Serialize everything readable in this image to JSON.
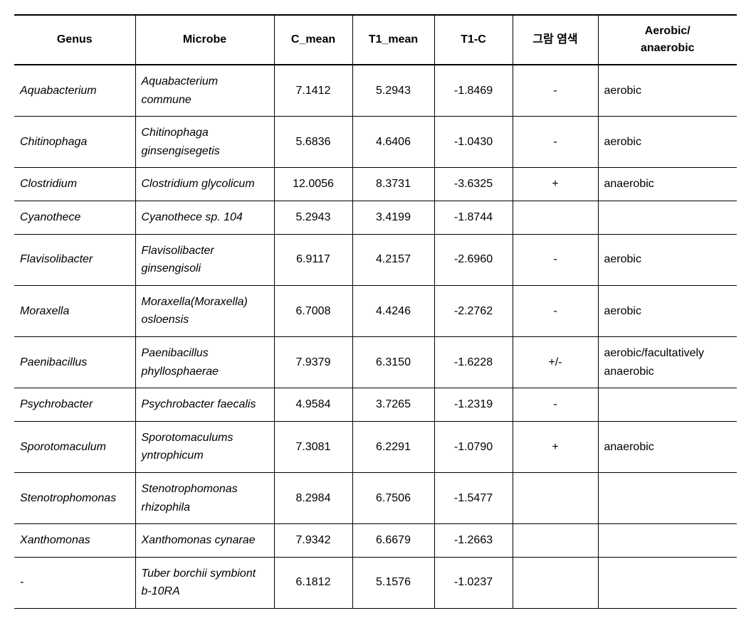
{
  "table": {
    "columns": [
      {
        "key": "genus",
        "label": "Genus",
        "class": "col-genus"
      },
      {
        "key": "microbe",
        "label": "Microbe",
        "class": "col-microbe"
      },
      {
        "key": "cmean",
        "label": "C_mean",
        "class": "col-cmean"
      },
      {
        "key": "t1mean",
        "label": "T1_mean",
        "class": "col-t1mean"
      },
      {
        "key": "t1c",
        "label": "T1-C",
        "class": "col-t1c"
      },
      {
        "key": "gram",
        "label": "그람 염색",
        "class": "col-gram"
      },
      {
        "key": "aerobic",
        "label": "Aerobic/\nanaerobic",
        "class": "col-aerobic"
      }
    ],
    "rows": [
      {
        "genus": "Aquabacterium",
        "microbe": "Aquabacterium commune",
        "cmean": "7.1412",
        "t1mean": "5.2943",
        "t1c": "-1.8469",
        "gram": "-",
        "aerobic": "aerobic"
      },
      {
        "genus": "Chitinophaga",
        "microbe": "Chitinophaga ginsengisegetis",
        "cmean": "5.6836",
        "t1mean": "4.6406",
        "t1c": "-1.0430",
        "gram": "-",
        "aerobic": "aerobic"
      },
      {
        "genus": "Clostridium",
        "microbe": "Clostridium glycolicum",
        "cmean": "12.0056",
        "t1mean": "8.3731",
        "t1c": "-3.6325",
        "gram": "+",
        "aerobic": "anaerobic"
      },
      {
        "genus": "Cyanothece",
        "microbe": "Cyanothece sp. 104",
        "cmean": "5.2943",
        "t1mean": "3.4199",
        "t1c": "-1.8744",
        "gram": "",
        "aerobic": ""
      },
      {
        "genus": "Flavisolibacter",
        "microbe": "Flavisolibacter ginsengisoli",
        "cmean": "6.9117",
        "t1mean": "4.2157",
        "t1c": "-2.6960",
        "gram": "-",
        "aerobic": "aerobic"
      },
      {
        "genus": "Moraxella",
        "microbe": "Moraxella(Moraxella) osloensis",
        "cmean": "6.7008",
        "t1mean": "4.4246",
        "t1c": "-2.2762",
        "gram": "-",
        "aerobic": "aerobic"
      },
      {
        "genus": "Paenibacillus",
        "microbe": "Paenibacillus phyllosphaerae",
        "cmean": "7.9379",
        "t1mean": "6.3150",
        "t1c": "-1.6228",
        "gram": "+/-",
        "aerobic": "aerobic/facultatively anaerobic"
      },
      {
        "genus": "Psychrobacter",
        "microbe": "Psychrobacter faecalis",
        "cmean": "4.9584",
        "t1mean": "3.7265",
        "t1c": "-1.2319",
        "gram": "-",
        "aerobic": ""
      },
      {
        "genus": "Sporotomaculum",
        "microbe": "Sporotomaculums yntrophicum",
        "cmean": "7.3081",
        "t1mean": "6.2291",
        "t1c": "-1.0790",
        "gram": "+",
        "aerobic": "anaerobic"
      },
      {
        "genus": "Stenotrophomonas",
        "microbe": "Stenotrophomonas rhizophila",
        "cmean": "8.2984",
        "t1mean": "6.7506",
        "t1c": "-1.5477",
        "gram": "",
        "aerobic": ""
      },
      {
        "genus": "Xanthomonas",
        "microbe": "Xanthomonas cynarae",
        "cmean": "7.9342",
        "t1mean": "6.6679",
        "t1c": "-1.2663",
        "gram": "",
        "aerobic": ""
      },
      {
        "genus": "-",
        "microbe": "Tuber borchii symbiont b-10RA",
        "cmean": "6.1812",
        "t1mean": "5.1576",
        "t1c": "-1.0237",
        "gram": "",
        "aerobic": ""
      }
    ],
    "styles": {
      "header_font_weight": "bold",
      "italic_columns": [
        "genus",
        "microbe"
      ],
      "numeric_align": "center",
      "border_color": "#000000",
      "background_color": "#ffffff",
      "font_family": "Arial, Malgun Gothic, sans-serif",
      "font_size_pt": 12
    }
  }
}
